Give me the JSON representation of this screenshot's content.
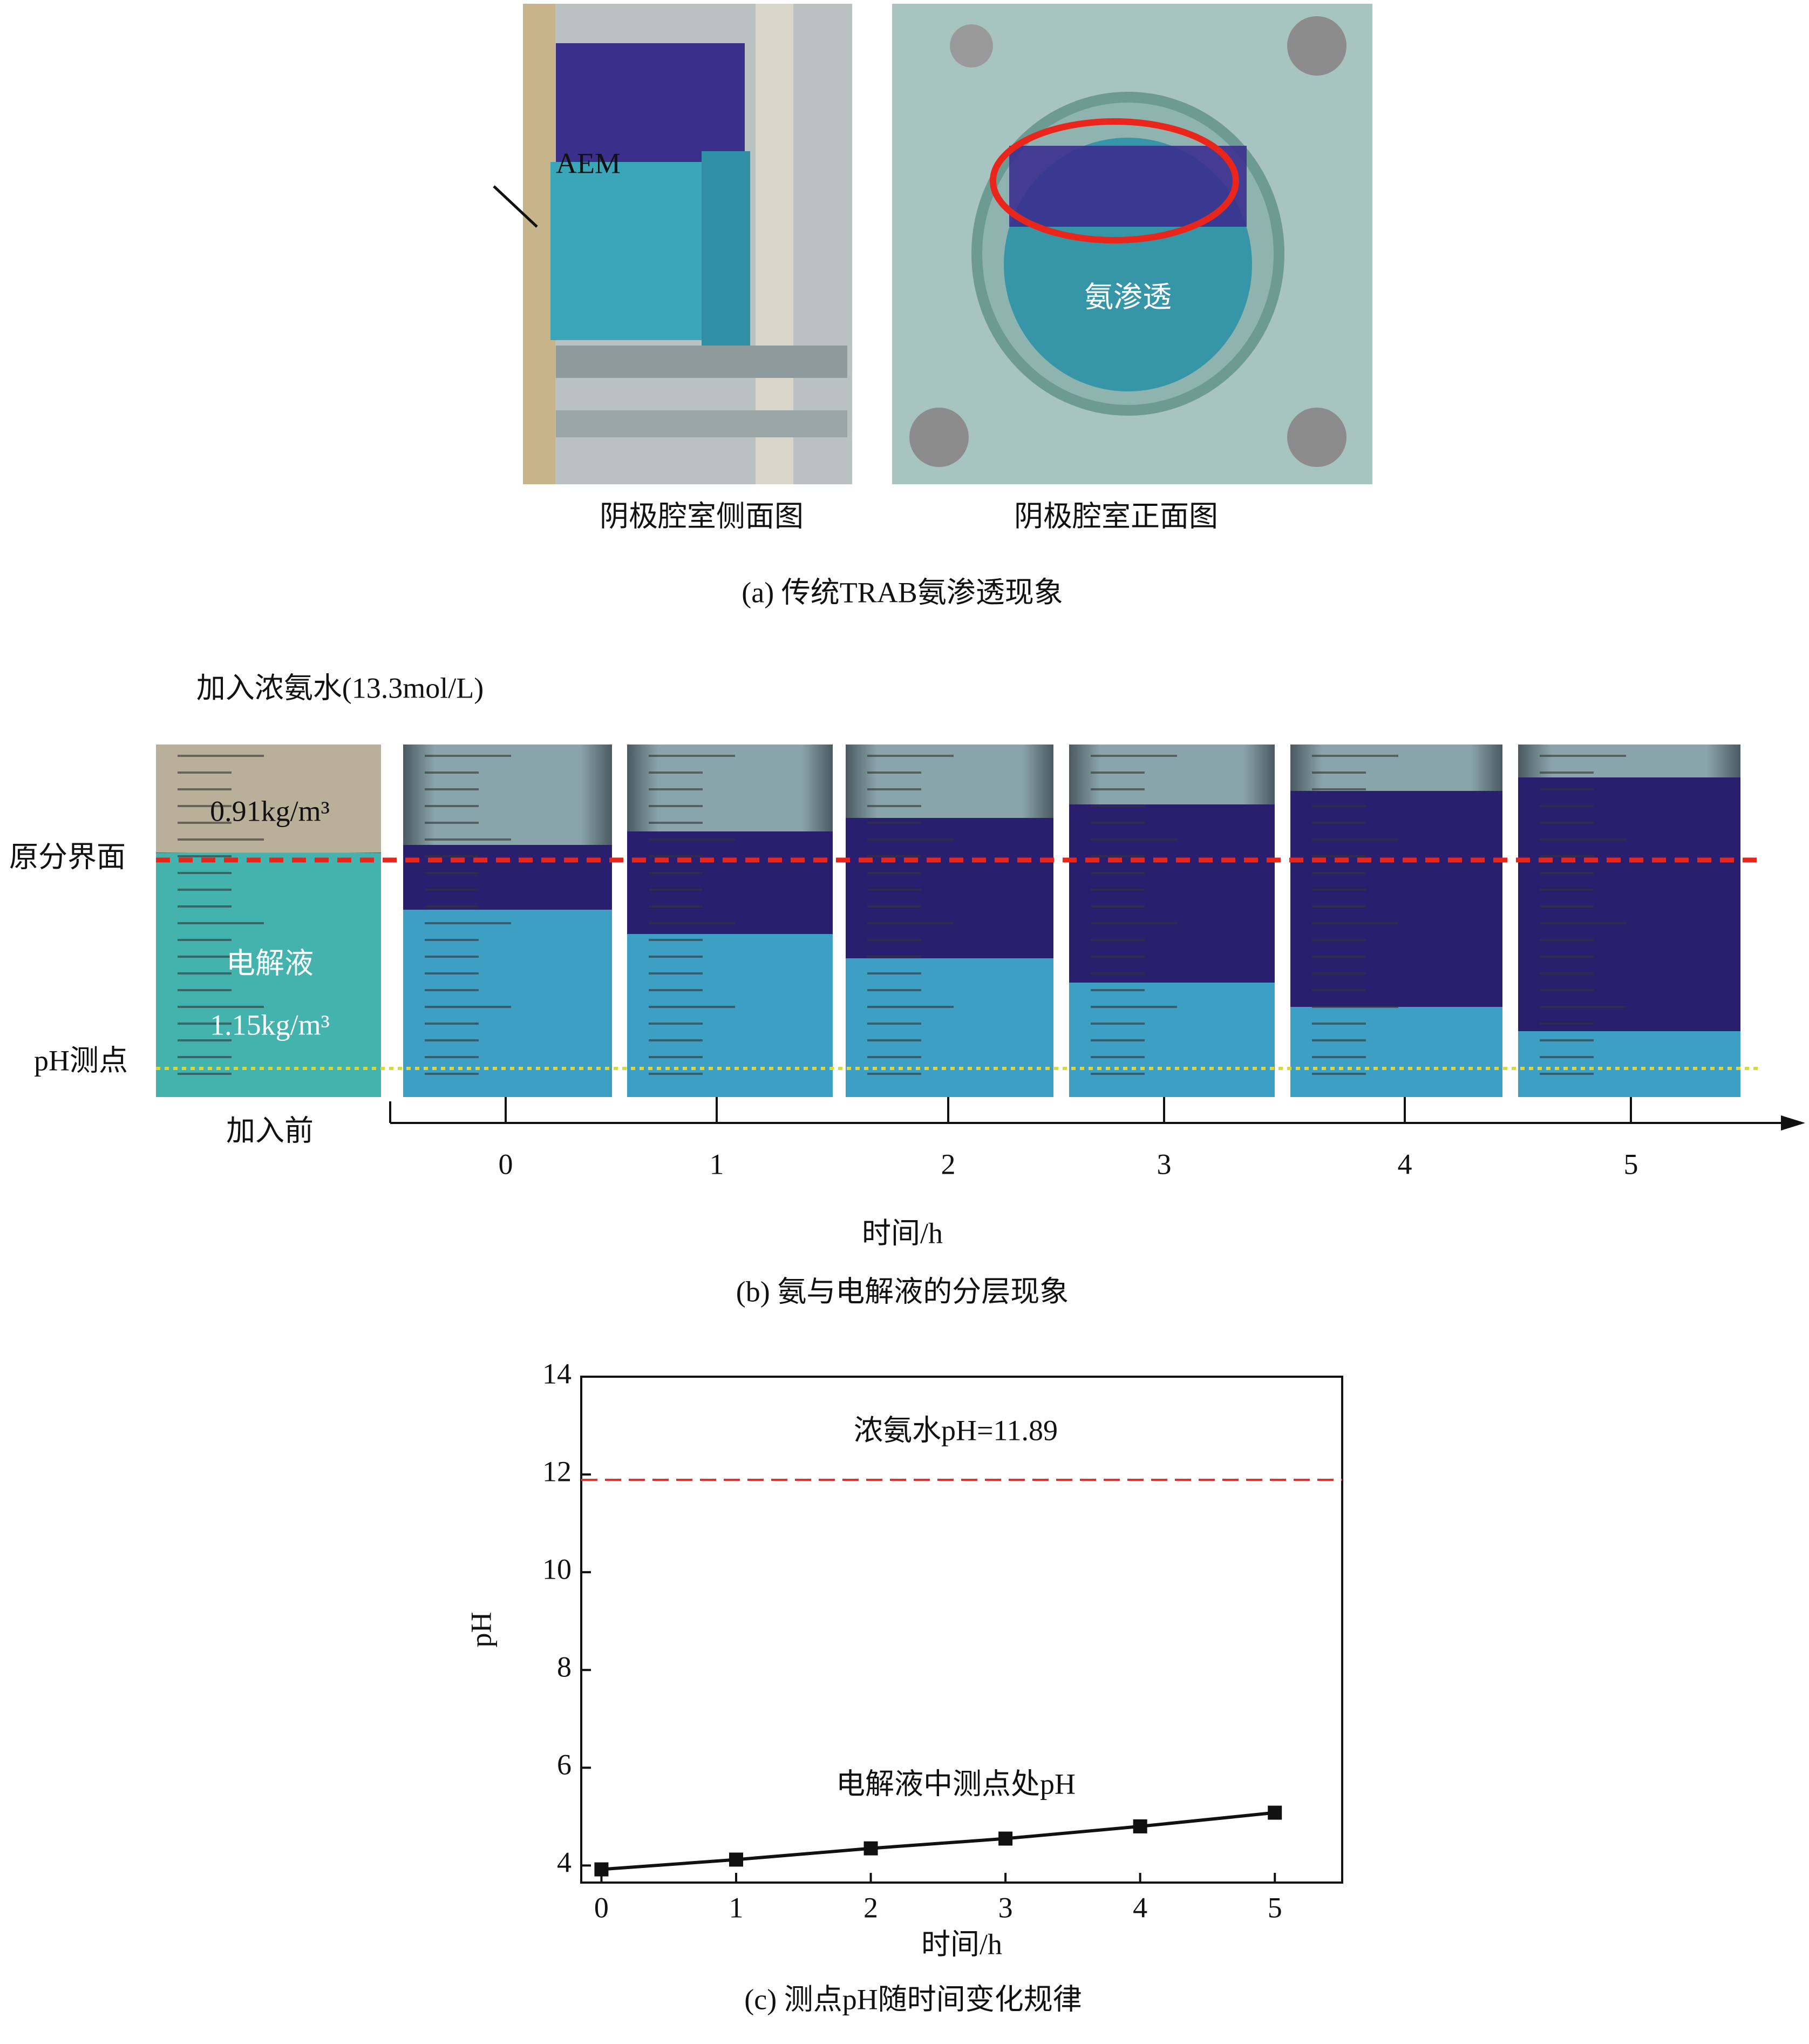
{
  "panel_a": {
    "aem": "AEM",
    "permeation": "氨渗透",
    "side_view": "阴极腔室侧面图",
    "front_view": "阴极腔室正面图",
    "caption": "(a) 传统TRAB氨渗透现象"
  },
  "panel_b": {
    "added": "加入浓氨水(13.3mol/L)",
    "density_top": "0.91kg/m³",
    "interface": "原分界面",
    "electrolyte": "电解液",
    "density_bottom": "1.15kg/m³",
    "ph_point": "pH测点",
    "before": "加入前",
    "ticks": [
      0,
      1,
      2,
      3,
      4,
      5
    ],
    "xlabel": "时间/h",
    "caption": "(b)  氨与电解液的分层现象"
  },
  "chart_data": {
    "type": "line",
    "x": [
      0,
      1,
      2,
      3,
      4,
      5
    ],
    "series": [
      {
        "name": "电解液中测点处pH",
        "color": "#111111",
        "values": [
          3.92,
          4.12,
          4.35,
          4.55,
          4.8,
          5.08
        ]
      }
    ],
    "reference_line": {
      "value": 11.89,
      "label": "浓氨水pH=11.89",
      "color": "#e03030"
    },
    "xlim": [
      -0.15,
      5.5
    ],
    "ylim": [
      3.65,
      14
    ],
    "xticks": [
      0,
      1,
      2,
      3,
      4,
      5
    ],
    "yticks": [
      4,
      6,
      8,
      10,
      12,
      14
    ],
    "xlabel": "时间/h",
    "ylabel": "pH",
    "caption": "(c) 测点pH随时间变化规律"
  }
}
